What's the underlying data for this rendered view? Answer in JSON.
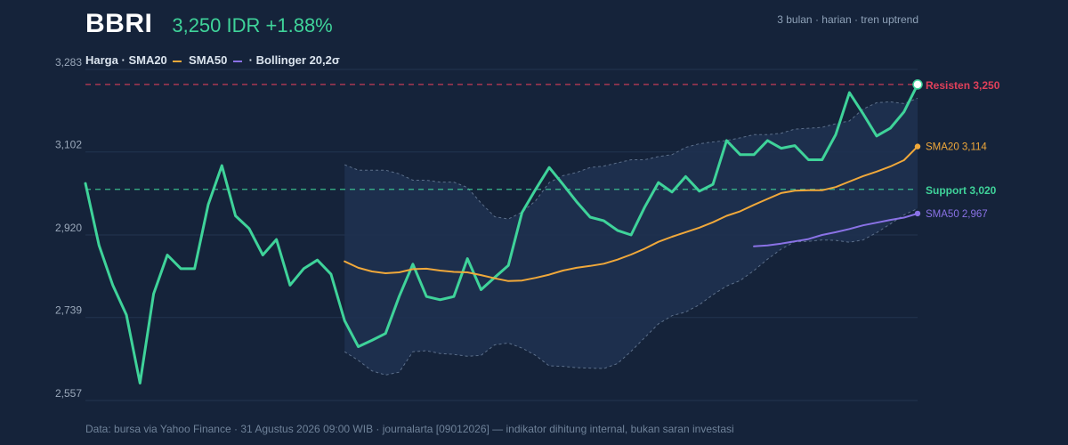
{
  "header": {
    "ticker": "BBRI",
    "price_change": "3,250 IDR +1.88%",
    "meta": "3 bulan · harian · tren uptrend"
  },
  "legend": {
    "price": "Harga",
    "sma20": "SMA20",
    "sma50": "SMA50",
    "bollinger": "Bollinger 20,2σ"
  },
  "footer": "Data: bursa via Yahoo Finance · 31 Agustus 2026 09:00 WIB · journalarta [09012026] — indikator dihitung internal, bukan saran investasi",
  "colors": {
    "background": "#15233a",
    "price": "#3fd39a",
    "sma20": "#f0a83a",
    "sma50": "#8a72e6",
    "resistance": "#e0405a",
    "support": "#3fd39a",
    "band_fill": "#1e3150",
    "band_edge": "#5c6f8a",
    "grid": "#223450",
    "tick": "#9aa8ba"
  },
  "chart_data": {
    "type": "line",
    "ylim": [
      2557,
      3283
    ],
    "yticks": [
      2557,
      2739,
      2920,
      3102,
      3283
    ],
    "ytick_labels": [
      "2,557",
      "2,739",
      "2,920",
      "3,102",
      "3,283"
    ],
    "grid": true,
    "series": [
      {
        "name": "Harga",
        "values": [
          3033,
          2897,
          2810,
          2745,
          2595,
          2791,
          2876,
          2846,
          2846,
          2987,
          3072,
          2962,
          2934,
          2876,
          2910,
          2810,
          2846,
          2865,
          2834,
          2732,
          2675,
          2689,
          2704,
          2785,
          2856,
          2785,
          2778,
          2785,
          2868,
          2800,
          2827,
          2853,
          2969,
          3020,
          3068,
          3031,
          2993,
          2959,
          2951,
          2930,
          2920,
          2981,
          3035,
          3014,
          3048,
          3016,
          3031,
          3127,
          3096,
          3096,
          3127,
          3110,
          3116,
          3085,
          3085,
          3140,
          3232,
          3186,
          3137,
          3154,
          3190,
          3250
        ]
      },
      {
        "name": "SMA20",
        "values": [
          null,
          null,
          null,
          null,
          null,
          null,
          null,
          null,
          null,
          null,
          null,
          null,
          null,
          null,
          null,
          null,
          null,
          null,
          null,
          2862,
          2848,
          2840,
          2836,
          2838,
          2845,
          2846,
          2842,
          2839,
          2838,
          2832,
          2825,
          2819,
          2820,
          2826,
          2833,
          2842,
          2848,
          2852,
          2857,
          2866,
          2877,
          2890,
          2905,
          2916,
          2926,
          2936,
          2948,
          2962,
          2972,
          2986,
          2999,
          3012,
          3017,
          3018,
          3018,
          3025,
          3037,
          3049,
          3059,
          3070,
          3084,
          3114
        ]
      },
      {
        "name": "SMA50",
        "values": [
          null,
          null,
          null,
          null,
          null,
          null,
          null,
          null,
          null,
          null,
          null,
          null,
          null,
          null,
          null,
          null,
          null,
          null,
          null,
          null,
          null,
          null,
          null,
          null,
          null,
          null,
          null,
          null,
          null,
          null,
          null,
          null,
          null,
          null,
          null,
          null,
          null,
          null,
          null,
          null,
          null,
          null,
          null,
          null,
          null,
          null,
          null,
          null,
          null,
          2895,
          2897,
          2901,
          2906,
          2911,
          2920,
          2926,
          2933,
          2941,
          2947,
          2953,
          2958,
          2967
        ]
      }
    ],
    "bollinger": {
      "name": "Bollinger 20,2σ",
      "upper": [
        null,
        null,
        null,
        null,
        null,
        null,
        null,
        null,
        null,
        null,
        null,
        null,
        null,
        null,
        null,
        null,
        null,
        null,
        null,
        3074,
        3062,
        3062,
        3062,
        3054,
        3040,
        3040,
        3036,
        3036,
        3024,
        2990,
        2960,
        2955,
        2970,
        2995,
        3035,
        3050,
        3057,
        3068,
        3071,
        3078,
        3085,
        3085,
        3092,
        3096,
        3112,
        3120,
        3124,
        3127,
        3133,
        3140,
        3140,
        3143,
        3152,
        3154,
        3156,
        3164,
        3170,
        3196,
        3210,
        3212,
        3208,
        3220
      ],
      "lower": [
        null,
        null,
        null,
        null,
        null,
        null,
        null,
        null,
        null,
        null,
        null,
        null,
        null,
        null,
        null,
        null,
        null,
        null,
        null,
        2664,
        2645,
        2622,
        2613,
        2619,
        2664,
        2666,
        2660,
        2658,
        2654,
        2656,
        2679,
        2683,
        2672,
        2656,
        2633,
        2632,
        2629,
        2628,
        2627,
        2638,
        2665,
        2695,
        2725,
        2743,
        2751,
        2767,
        2789,
        2808,
        2820,
        2842,
        2867,
        2889,
        2905,
        2906,
        2909,
        2908,
        2904,
        2909,
        2925,
        2944,
        2964,
        2978
      ]
    },
    "levels": [
      {
        "name": "Resisten",
        "value": 3250,
        "label": "Resisten 3,250"
      },
      {
        "name": "Support",
        "value": 3020,
        "label": "Support 3,020"
      }
    ],
    "end_labels": {
      "sma20": "SMA20 3,114",
      "sma50": "SMA50 2,967"
    }
  }
}
